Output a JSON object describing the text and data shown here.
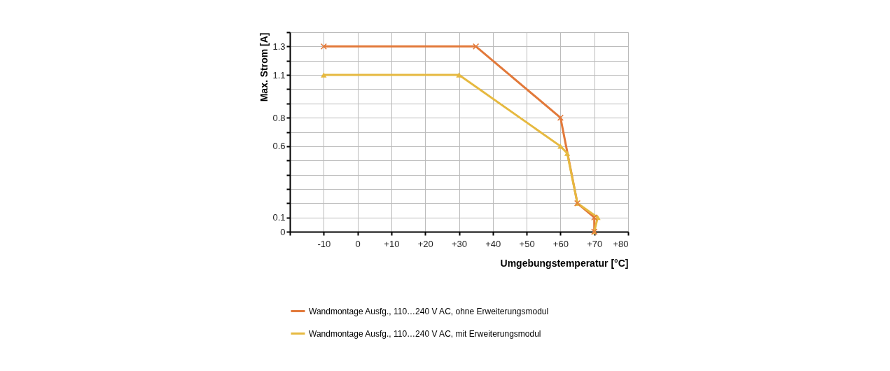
{
  "chart_data": {
    "type": "line",
    "xlabel": "Umgebungstemperatur [°C]",
    "ylabel": "Max. Strom  [A]",
    "xlim": [
      -20,
      80
    ],
    "ylim": [
      0,
      1.4
    ],
    "xticks": [
      {
        "value": -20,
        "label": null
      },
      -10,
      0,
      {
        "value": 10,
        "label": "+10"
      },
      {
        "value": 20,
        "label": "+20"
      },
      {
        "value": 30,
        "label": "+30"
      },
      {
        "value": 40,
        "label": "+40"
      },
      {
        "value": 50,
        "label": "+50"
      },
      {
        "value": 60,
        "label": "+60"
      },
      {
        "value": 70,
        "label": "+70"
      },
      {
        "value": 80,
        "label": "+80"
      }
    ],
    "yticks": [
      0,
      0.1,
      {
        "value": 0.2,
        "label": null
      },
      {
        "value": 0.3,
        "label": null
      },
      {
        "value": 0.4,
        "label": null
      },
      {
        "value": 0.5,
        "label": null
      },
      0.6,
      {
        "value": 0.7,
        "label": null
      },
      0.8,
      {
        "value": 0.9,
        "label": null
      },
      {
        "value": 1.0,
        "label": null
      },
      1.1,
      {
        "value": 1.2,
        "label": null
      },
      1.3,
      {
        "value": 1.4,
        "label": null
      }
    ],
    "grid": true,
    "legend": "bottom",
    "series": [
      {
        "name": "Wandmontage Ausfg., 110…240 V AC, ohne Erweiterungsmodul",
        "color": "#e2793a",
        "marker": "cross",
        "x": [
          -10,
          35,
          60,
          65,
          70,
          70
        ],
        "values": [
          1.3,
          1.3,
          0.8,
          0.2,
          0.1,
          0
        ]
      },
      {
        "name": "Wandmontage Ausfg., 110…240 V AC, mit Erweiterungsmodul",
        "color": "#e6b940",
        "marker": "triangle",
        "x": [
          -10,
          30,
          60,
          62,
          65,
          71,
          70
        ],
        "values": [
          1.1,
          1.1,
          0.6,
          0.55,
          0.2,
          0.1,
          0
        ]
      }
    ]
  }
}
